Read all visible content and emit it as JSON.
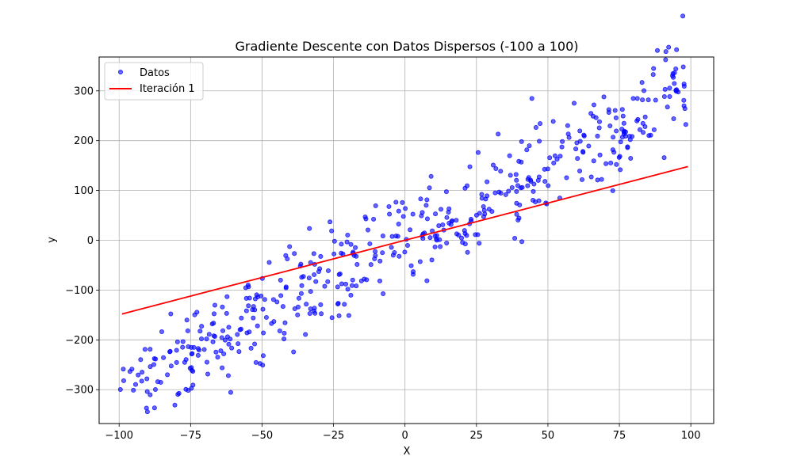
{
  "chart_data": {
    "type": "scatter",
    "title": "Gradiente Descente con Datos Dispersos (-100 a 100)",
    "xlabel": "X",
    "ylabel": "y",
    "xlim": [
      -107,
      108
    ],
    "ylim": [
      -368,
      368
    ],
    "xticks": [
      -100,
      -75,
      -50,
      -25,
      0,
      25,
      50,
      75,
      100
    ],
    "yticks": [
      -300,
      -200,
      -100,
      0,
      100,
      200,
      300
    ],
    "xtick_labels": [
      "−100",
      "−75",
      "−50",
      "−25",
      "0",
      "25",
      "50",
      "75",
      "100"
    ],
    "ytick_labels": [
      "−300",
      "−200",
      "−100",
      "0",
      "100",
      "200",
      "300"
    ],
    "grid": true,
    "legend_position": "upper-left",
    "series": [
      {
        "name": "Datos",
        "kind": "scatter",
        "color": "#0000ff",
        "points": {
          "count": 500,
          "x_min": -100,
          "x_max": 99,
          "approx_slope": 3,
          "approx_intercept": 0,
          "approx_noise_sd": 52
        }
      },
      {
        "name": "Iteración 1",
        "kind": "line",
        "color": "#ff0000",
        "x": [
          -99,
          99
        ],
        "y": [
          -148,
          148
        ]
      }
    ]
  }
}
